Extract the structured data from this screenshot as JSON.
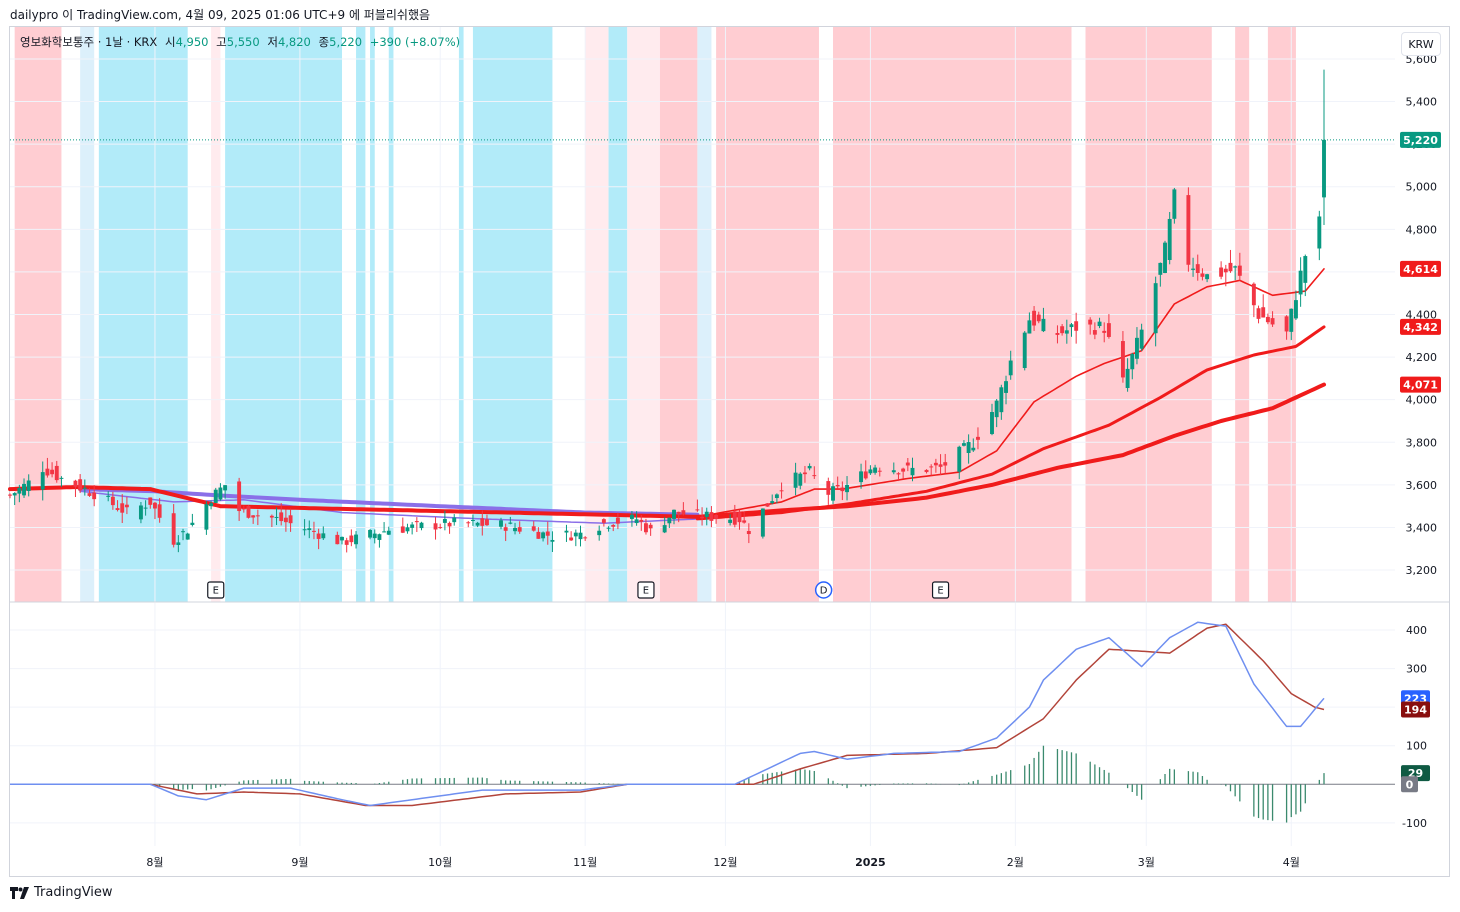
{
  "header": {
    "caption": "dailypro 이 TradingView.com, 4월 09, 2025 01:06 UTC+9 에 퍼블리쉬했음"
  },
  "legend": {
    "symbol": "영보화학보통주 · 1날 · KRX",
    "open_label": "시",
    "open_value": "4,950",
    "high_label": "고",
    "high_value": "5,550",
    "low_label": "저",
    "low_value": "4,820",
    "close_label": "종",
    "close_value": "5,220",
    "change": "+390 (+8.07%)"
  },
  "currency_button": "KRW",
  "footer": {
    "brand": "TradingView"
  },
  "colors": {
    "up": "#089981",
    "down": "#f23645",
    "zone_red": "#ffcdd2",
    "zone_pink": "#ffebee",
    "zone_cyan": "#b2ebf9",
    "zone_lightblue": "#dcf0fb",
    "ema_red": "#f01b1b",
    "ma_purple": "#8a6fe8",
    "macd_line": "#6f8ff0",
    "signal_line": "#b2443a",
    "hist": "#3b8a6e"
  },
  "chart_data": [
    {
      "type": "candlestick",
      "title": "",
      "series_name": "영보화학보통주",
      "ylim": [
        3050,
        5750
      ],
      "y_ticks": [
        "3,200",
        "3,400",
        "3,600",
        "3,800",
        "4,000",
        "4,200",
        "4,400",
        "4,600",
        "4,800",
        "5,000",
        "5,200",
        "5,400",
        "5,600"
      ],
      "y_tick_values": [
        3200,
        3400,
        3600,
        3800,
        4000,
        4200,
        4400,
        4600,
        4800,
        5000,
        5200,
        5400,
        5600
      ],
      "last_price": 5220,
      "last_price_label": "5,220",
      "ma_labels": [
        {
          "value": 4614,
          "label": "4,614"
        },
        {
          "value": 4342,
          "label": "4,342"
        },
        {
          "value": 4071,
          "label": "4,071"
        }
      ],
      "x_labels": [
        "8월",
        "9월",
        "10월",
        "11월",
        "12월",
        "2025",
        "2월",
        "3월",
        "4월"
      ],
      "x_label_dates": [
        "2024-08-01",
        "2024-09-01",
        "2024-10-01",
        "2024-11-01",
        "2024-12-01",
        "2025-01-01",
        "2025-02-01",
        "2025-03-01",
        "2025-04-01"
      ],
      "date_range": [
        "2024-07-01",
        "2025-04-08"
      ],
      "background_zones": [
        {
          "from": "2024-07-02",
          "to": "2024-07-12",
          "zone": "red"
        },
        {
          "from": "2024-07-16",
          "to": "2024-07-19",
          "zone": "lightblue"
        },
        {
          "from": "2024-07-20",
          "to": "2024-08-08",
          "zone": "cyan"
        },
        {
          "from": "2024-08-13",
          "to": "2024-08-15",
          "zone": "pink"
        },
        {
          "from": "2024-08-16",
          "to": "2024-09-10",
          "zone": "cyan"
        },
        {
          "from": "2024-09-13",
          "to": "2024-09-15",
          "zone": "cyan"
        },
        {
          "from": "2024-09-16",
          "to": "2024-09-17",
          "zone": "cyan"
        },
        {
          "from": "2024-09-20",
          "to": "2024-09-21",
          "zone": "cyan"
        },
        {
          "from": "2024-10-05",
          "to": "2024-10-06",
          "zone": "cyan"
        },
        {
          "from": "2024-10-08",
          "to": "2024-10-25",
          "zone": "cyan"
        },
        {
          "from": "2024-11-01",
          "to": "2024-11-06",
          "zone": "pink"
        },
        {
          "from": "2024-11-06",
          "to": "2024-11-10",
          "zone": "cyan"
        },
        {
          "from": "2024-11-10",
          "to": "2024-11-17",
          "zone": "pink"
        },
        {
          "from": "2024-11-17",
          "to": "2024-11-25",
          "zone": "red"
        },
        {
          "from": "2024-11-25",
          "to": "2024-11-28",
          "zone": "lightblue"
        },
        {
          "from": "2024-11-29",
          "to": "2024-12-21",
          "zone": "red"
        },
        {
          "from": "2024-12-24",
          "to": "2025-02-13",
          "zone": "red"
        },
        {
          "from": "2025-02-16",
          "to": "2025-03-15",
          "zone": "red"
        },
        {
          "from": "2025-03-20",
          "to": "2025-03-23",
          "zone": "red"
        },
        {
          "from": "2025-03-27",
          "to": "2025-04-02",
          "zone": "red"
        }
      ],
      "event_markers": [
        {
          "date": "2024-08-14",
          "text": "E",
          "style": "box"
        },
        {
          "date": "2024-11-14",
          "text": "E",
          "style": "box"
        },
        {
          "date": "2024-12-22",
          "text": "D",
          "style": "circle"
        },
        {
          "date": "2025-01-16",
          "text": "E",
          "style": "box"
        }
      ],
      "price_anchors": [
        [
          "2024-07-01",
          3550
        ],
        [
          "2024-07-05",
          3610
        ],
        [
          "2024-07-08",
          3680
        ],
        [
          "2024-07-12",
          3630
        ],
        [
          "2024-07-19",
          3560
        ],
        [
          "2024-07-26",
          3470
        ],
        [
          "2024-07-31",
          3520
        ],
        [
          "2024-08-05",
          3340
        ],
        [
          "2024-08-08",
          3390
        ],
        [
          "2024-08-13",
          3540
        ],
        [
          "2024-08-16",
          3600
        ],
        [
          "2024-08-19",
          3480
        ],
        [
          "2024-08-27",
          3440
        ],
        [
          "2024-09-04",
          3380
        ],
        [
          "2024-09-10",
          3330
        ],
        [
          "2024-09-20",
          3390
        ],
        [
          "2024-10-04",
          3420
        ],
        [
          "2024-10-15",
          3410
        ],
        [
          "2024-10-25",
          3360
        ],
        [
          "2024-10-31",
          3370
        ],
        [
          "2024-11-05",
          3420
        ],
        [
          "2024-11-12",
          3440
        ],
        [
          "2024-11-15",
          3380
        ],
        [
          "2024-11-20",
          3470
        ],
        [
          "2024-11-28",
          3450
        ],
        [
          "2024-12-04",
          3440
        ],
        [
          "2024-12-06",
          3390
        ],
        [
          "2024-12-13",
          3600
        ],
        [
          "2024-12-19",
          3660
        ],
        [
          "2024-12-23",
          3560
        ],
        [
          "2024-12-26",
          3580
        ],
        [
          "2025-01-02",
          3690
        ],
        [
          "2025-01-09",
          3670
        ],
        [
          "2025-01-16",
          3680
        ],
        [
          "2025-01-23",
          3800
        ],
        [
          "2025-01-28",
          3980
        ],
        [
          "2025-01-31",
          4180
        ],
        [
          "2025-02-04",
          4380
        ],
        [
          "2025-02-10",
          4310
        ],
        [
          "2025-02-14",
          4340
        ],
        [
          "2025-02-20",
          4340
        ],
        [
          "2025-02-24",
          4080
        ],
        [
          "2025-02-28",
          4320
        ],
        [
          "2025-03-05",
          4700
        ],
        [
          "2025-03-07",
          4950
        ],
        [
          "2025-03-10",
          4650
        ],
        [
          "2025-03-14",
          4580
        ],
        [
          "2025-03-20",
          4610
        ],
        [
          "2025-03-25",
          4400
        ],
        [
          "2025-03-31",
          4310
        ],
        [
          "2025-04-04",
          4680
        ],
        [
          "2025-04-07",
          4830
        ],
        [
          "2025-04-08",
          5220
        ]
      ],
      "ema_short_anchors": [
        [
          "2024-11-25",
          3450
        ],
        [
          "2024-12-13",
          3520
        ],
        [
          "2024-12-20",
          3580
        ],
        [
          "2024-12-26",
          3580
        ],
        [
          "2025-01-09",
          3630
        ],
        [
          "2025-01-20",
          3660
        ],
        [
          "2025-01-28",
          3760
        ],
        [
          "2025-02-05",
          3990
        ],
        [
          "2025-02-14",
          4110
        ],
        [
          "2025-02-20",
          4170
        ],
        [
          "2025-02-28",
          4230
        ],
        [
          "2025-03-07",
          4450
        ],
        [
          "2025-03-14",
          4530
        ],
        [
          "2025-03-21",
          4560
        ],
        [
          "2025-03-28",
          4490
        ],
        [
          "2025-04-04",
          4510
        ],
        [
          "2025-04-08",
          4614
        ]
      ],
      "ema_mid_anchors": [
        [
          "2024-11-25",
          3440
        ],
        [
          "2024-12-13",
          3470
        ],
        [
          "2024-12-27",
          3510
        ],
        [
          "2025-01-13",
          3570
        ],
        [
          "2025-01-27",
          3650
        ],
        [
          "2025-02-07",
          3770
        ],
        [
          "2025-02-21",
          3880
        ],
        [
          "2025-03-04",
          4010
        ],
        [
          "2025-03-14",
          4140
        ],
        [
          "2025-03-24",
          4210
        ],
        [
          "2025-04-02",
          4250
        ],
        [
          "2025-04-08",
          4342
        ]
      ],
      "ema_long_anchors": [
        [
          "2024-07-01",
          3580
        ],
        [
          "2024-07-15",
          3590
        ],
        [
          "2024-07-31",
          3580
        ],
        [
          "2024-08-15",
          3500
        ],
        [
          "2024-11-25",
          3450
        ],
        [
          "2024-12-13",
          3480
        ],
        [
          "2024-12-27",
          3500
        ],
        [
          "2025-01-13",
          3540
        ],
        [
          "2025-01-27",
          3600
        ],
        [
          "2025-02-10",
          3680
        ],
        [
          "2025-02-24",
          3740
        ],
        [
          "2025-03-07",
          3830
        ],
        [
          "2025-03-17",
          3900
        ],
        [
          "2025-03-28",
          3960
        ],
        [
          "2025-04-08",
          4071
        ]
      ],
      "ma_purple_anchors": [
        [
          "2024-07-16",
          3580
        ],
        [
          "2024-08-01",
          3570
        ],
        [
          "2024-08-15",
          3550
        ],
        [
          "2024-09-01",
          3530
        ],
        [
          "2024-10-01",
          3500
        ],
        [
          "2024-11-01",
          3470
        ],
        [
          "2024-11-25",
          3460
        ]
      ],
      "ma_purple_thin_anchors": [
        [
          "2024-07-16",
          3570
        ],
        [
          "2024-08-05",
          3520
        ],
        [
          "2024-08-20",
          3530
        ],
        [
          "2024-09-10",
          3470
        ],
        [
          "2024-10-10",
          3440
        ],
        [
          "2024-11-05",
          3420
        ],
        [
          "2024-11-25",
          3440
        ]
      ]
    },
    {
      "type": "macd",
      "title": "",
      "ylim": [
        -160,
        470
      ],
      "y_ticks": [
        "-100",
        "100",
        "200",
        "300",
        "400"
      ],
      "y_tick_values": [
        -100,
        100,
        200,
        300,
        400
      ],
      "macd_value": 223,
      "macd_label": "223",
      "signal_value": 194,
      "signal_label": "194",
      "hist_value": 29,
      "hist_label": "29",
      "zero_label": "0",
      "macd_anchors": [
        [
          "2024-07-01",
          0
        ],
        [
          "2024-07-31",
          0
        ],
        [
          "2024-08-06",
          -30
        ],
        [
          "2024-08-12",
          -40
        ],
        [
          "2024-08-20",
          -10
        ],
        [
          "2024-08-30",
          -10
        ],
        [
          "2024-09-10",
          -40
        ],
        [
          "2024-09-16",
          -55
        ],
        [
          "2024-09-25",
          -40
        ],
        [
          "2024-10-10",
          -15
        ],
        [
          "2024-10-31",
          -15
        ],
        [
          "2024-11-10",
          0
        ],
        [
          "2024-12-03",
          0
        ],
        [
          "2024-12-10",
          40
        ],
        [
          "2024-12-17",
          80
        ],
        [
          "2024-12-20",
          85
        ],
        [
          "2024-12-27",
          65
        ],
        [
          "2025-01-06",
          80
        ],
        [
          "2025-01-20",
          85
        ],
        [
          "2025-01-28",
          120
        ],
        [
          "2025-02-04",
          200
        ],
        [
          "2025-02-07",
          270
        ],
        [
          "2025-02-14",
          350
        ],
        [
          "2025-02-21",
          380
        ],
        [
          "2025-02-28",
          305
        ],
        [
          "2025-03-06",
          380
        ],
        [
          "2025-03-12",
          420
        ],
        [
          "2025-03-18",
          410
        ],
        [
          "2025-03-24",
          260
        ],
        [
          "2025-03-31",
          150
        ],
        [
          "2025-04-03",
          150
        ],
        [
          "2025-04-08",
          223
        ]
      ],
      "signal_anchors": [
        [
          "2024-07-01",
          0
        ],
        [
          "2024-07-31",
          0
        ],
        [
          "2024-08-10",
          -25
        ],
        [
          "2024-08-20",
          -20
        ],
        [
          "2024-09-01",
          -25
        ],
        [
          "2024-09-15",
          -55
        ],
        [
          "2024-09-25",
          -55
        ],
        [
          "2024-10-15",
          -25
        ],
        [
          "2024-10-31",
          -20
        ],
        [
          "2024-11-10",
          0
        ],
        [
          "2024-12-07",
          0
        ],
        [
          "2024-12-17",
          40
        ],
        [
          "2024-12-27",
          75
        ],
        [
          "2025-01-13",
          80
        ],
        [
          "2025-01-28",
          95
        ],
        [
          "2025-02-07",
          170
        ],
        [
          "2025-02-14",
          270
        ],
        [
          "2025-02-21",
          350
        ],
        [
          "2025-02-28",
          345
        ],
        [
          "2025-03-06",
          340
        ],
        [
          "2025-03-14",
          405
        ],
        [
          "2025-03-18",
          415
        ],
        [
          "2025-03-26",
          320
        ],
        [
          "2025-04-01",
          235
        ],
        [
          "2025-04-06",
          200
        ],
        [
          "2025-04-08",
          194
        ]
      ]
    }
  ]
}
